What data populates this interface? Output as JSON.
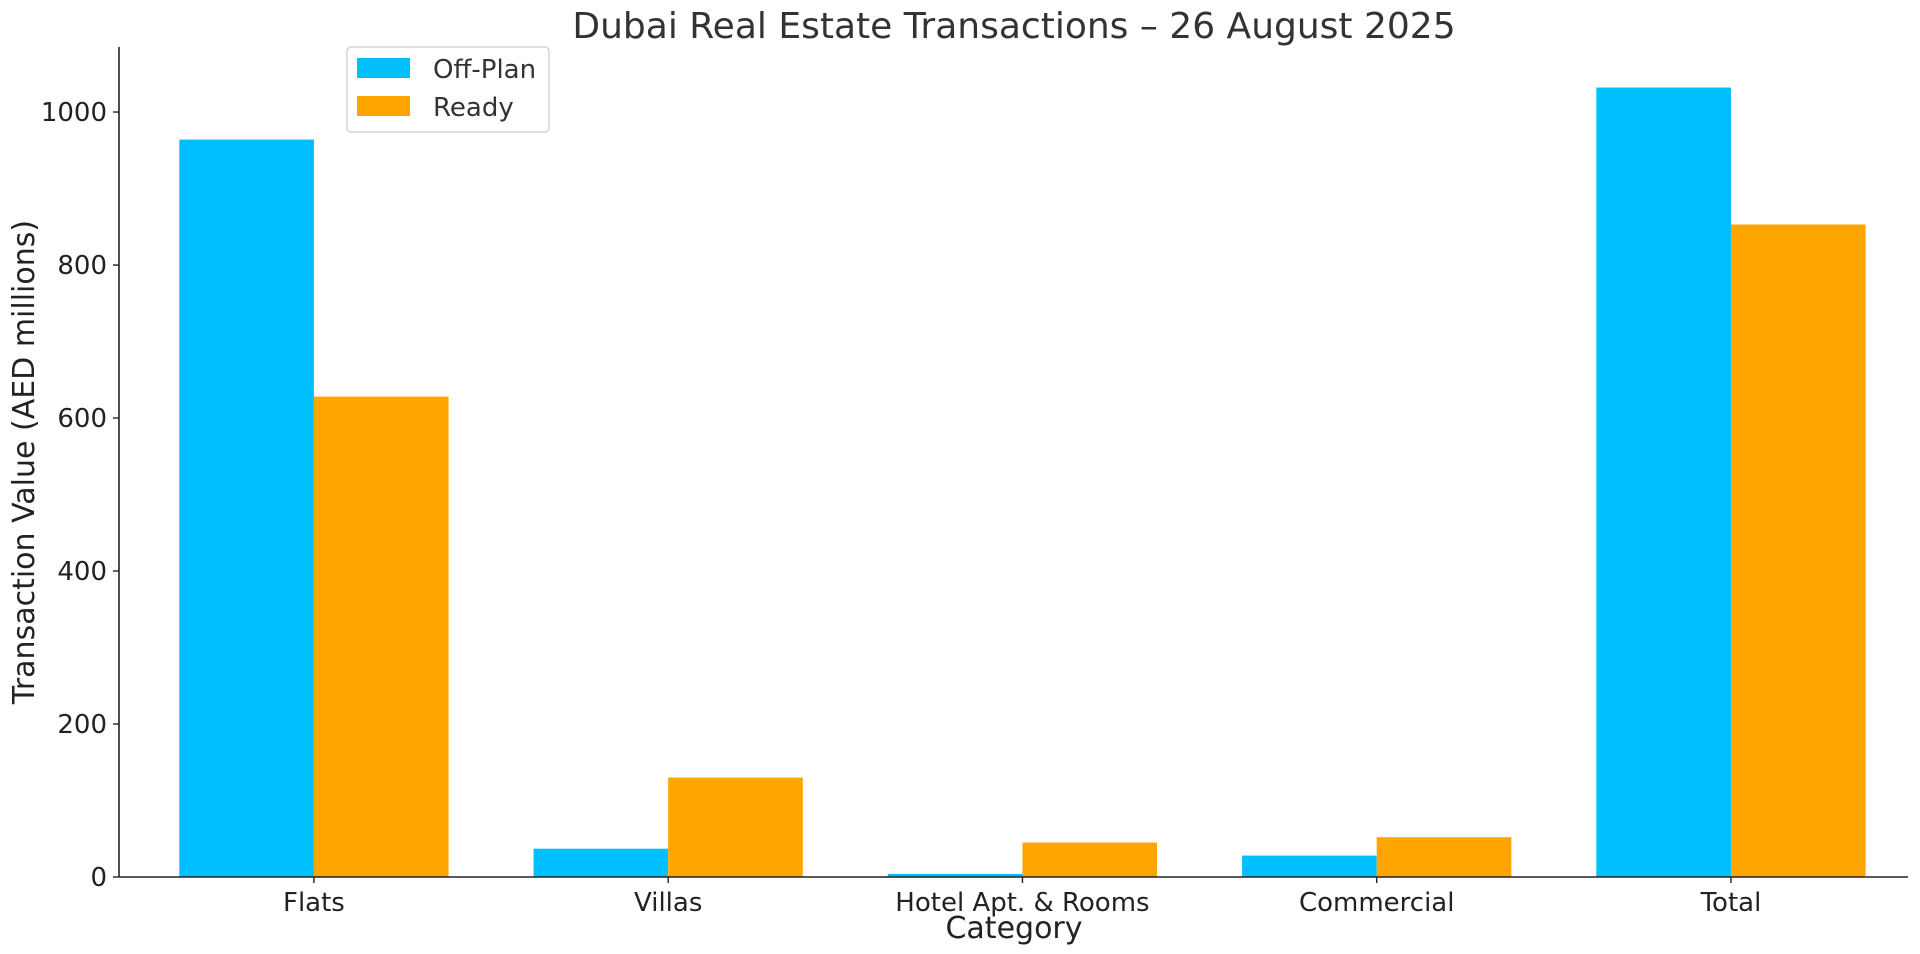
{
  "chart_data": {
    "type": "bar",
    "title": "Dubai Real Estate Transactions – 26 August 2025",
    "xlabel": "Category",
    "ylabel": "Transaction Value (AED millions)",
    "categories": [
      "Flats",
      "Villas",
      "Hotel Apt. & Rooms",
      "Commercial",
      "Total"
    ],
    "series": [
      {
        "name": "Off-Plan",
        "color": "#00BFFF",
        "values": [
          964,
          37,
          4,
          28,
          1032
        ]
      },
      {
        "name": "Ready",
        "color": "#FFA500",
        "values": [
          628,
          130,
          45,
          52,
          853
        ]
      }
    ],
    "ylim": [
      0,
      1085
    ],
    "yticks": [
      0,
      200,
      400,
      600,
      800,
      1000
    ],
    "grid": false,
    "legend_position": "top-left"
  }
}
